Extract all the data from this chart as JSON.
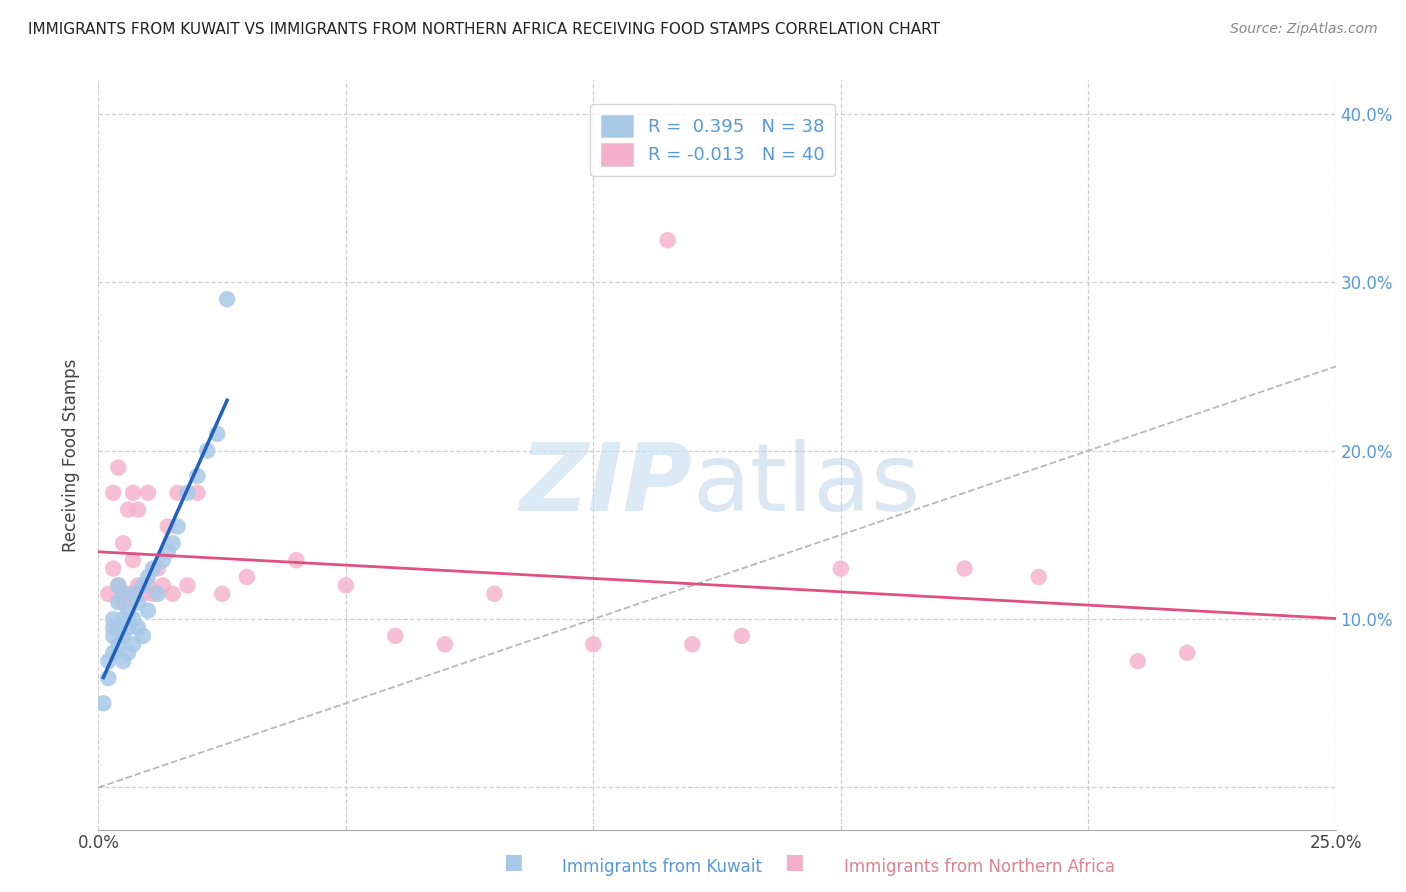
{
  "title": "IMMIGRANTS FROM KUWAIT VS IMMIGRANTS FROM NORTHERN AFRICA RECEIVING FOOD STAMPS CORRELATION CHART",
  "source": "Source: ZipAtlas.com",
  "ylabel": "Receiving Food Stamps",
  "xlabel_kuwait": "Immigrants from Kuwait",
  "xlabel_n_africa": "Immigrants from Northern Africa",
  "xlim": [
    0.0,
    0.25
  ],
  "ylim": [
    -0.025,
    0.42
  ],
  "r_kuwait": 0.395,
  "n_kuwait": 38,
  "r_n_africa": -0.013,
  "n_n_africa": 40,
  "color_kuwait": "#a8c8e8",
  "color_n_africa": "#f4b0c8",
  "line_color_kuwait": "#2060c0",
  "line_color_n_africa": "#e05080",
  "diagonal_color": "#b8b8b8",
  "background_color": "#ffffff",
  "grid_color": "#d0d0d0",
  "right_axis_color": "#5599dd",
  "title_color": "#222222",
  "source_color": "#888888",
  "kuwait_x": [
    0.001,
    0.002,
    0.002,
    0.003,
    0.003,
    0.003,
    0.003,
    0.004,
    0.004,
    0.004,
    0.004,
    0.005,
    0.005,
    0.005,
    0.005,
    0.006,
    0.006,
    0.006,
    0.007,
    0.007,
    0.007,
    0.008,
    0.008,
    0.009,
    0.009,
    0.01,
    0.01,
    0.011,
    0.012,
    0.013,
    0.014,
    0.015,
    0.016,
    0.018,
    0.02,
    0.022,
    0.024,
    0.026
  ],
  "kuwait_y": [
    0.05,
    0.065,
    0.075,
    0.08,
    0.09,
    0.095,
    0.1,
    0.085,
    0.095,
    0.11,
    0.12,
    0.075,
    0.09,
    0.1,
    0.115,
    0.08,
    0.095,
    0.105,
    0.085,
    0.1,
    0.115,
    0.095,
    0.11,
    0.09,
    0.12,
    0.105,
    0.125,
    0.13,
    0.115,
    0.135,
    0.14,
    0.145,
    0.155,
    0.175,
    0.185,
    0.2,
    0.21,
    0.29
  ],
  "n_africa_x": [
    0.002,
    0.003,
    0.003,
    0.004,
    0.004,
    0.005,
    0.005,
    0.006,
    0.006,
    0.007,
    0.007,
    0.008,
    0.008,
    0.009,
    0.01,
    0.01,
    0.011,
    0.012,
    0.013,
    0.014,
    0.015,
    0.016,
    0.018,
    0.02,
    0.025,
    0.03,
    0.04,
    0.05,
    0.06,
    0.07,
    0.08,
    0.1,
    0.12,
    0.13,
    0.15,
    0.175,
    0.19,
    0.21,
    0.115,
    0.22
  ],
  "n_africa_y": [
    0.115,
    0.13,
    0.175,
    0.12,
    0.19,
    0.11,
    0.145,
    0.115,
    0.165,
    0.135,
    0.175,
    0.12,
    0.165,
    0.115,
    0.12,
    0.175,
    0.115,
    0.13,
    0.12,
    0.155,
    0.115,
    0.175,
    0.12,
    0.175,
    0.115,
    0.125,
    0.135,
    0.12,
    0.09,
    0.085,
    0.115,
    0.085,
    0.085,
    0.09,
    0.13,
    0.13,
    0.125,
    0.075,
    0.325,
    0.08
  ],
  "x_tick_pos": [
    0.0,
    0.05,
    0.1,
    0.15,
    0.2,
    0.25
  ],
  "x_tick_labels": [
    "0.0%",
    "",
    "",
    "",
    "",
    "25.0%"
  ],
  "y_tick_pos": [
    0.0,
    0.1,
    0.2,
    0.3,
    0.4
  ],
  "y_tick_labels_right": [
    "",
    "10.0%",
    "20.0%",
    "30.0%",
    "40.0%"
  ]
}
